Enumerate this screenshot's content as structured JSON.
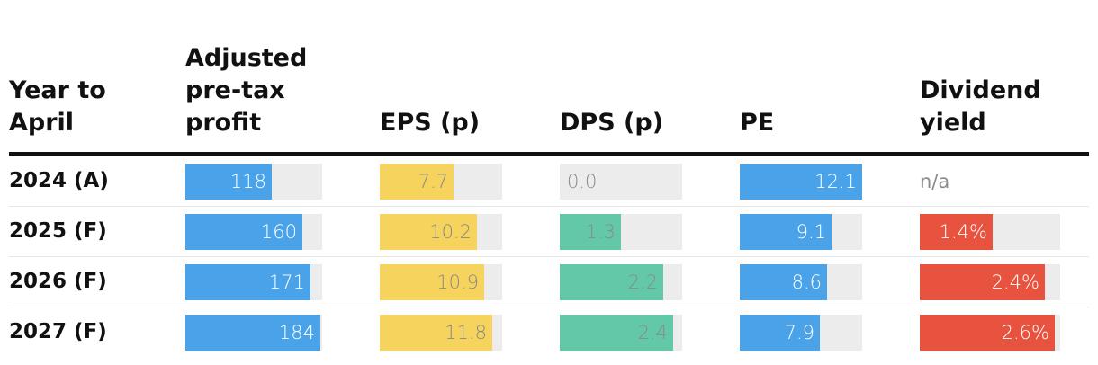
{
  "header": {
    "year": "Year to\nApril",
    "profit": "Adjusted\npre-tax\nprofit",
    "eps": "EPS (p)",
    "dps": "DPS (p)",
    "pe": "PE",
    "yield": "Dividend\nyield"
  },
  "chart_data": {
    "type": "table",
    "columns": [
      "Year to April",
      "Adjusted pre-tax profit",
      "EPS (p)",
      "DPS (p)",
      "PE",
      "Dividend yield"
    ],
    "rows": [
      {
        "year": "2024 (A)",
        "profit": {
          "value": 118,
          "label": "118"
        },
        "eps": {
          "value": 7.7,
          "label": "7.7"
        },
        "dps": {
          "value": 0.0,
          "label": "0.0"
        },
        "pe": {
          "value": 12.1,
          "label": "12.1"
        },
        "yield": {
          "value": null,
          "label": "n/a"
        }
      },
      {
        "year": "2025 (F)",
        "profit": {
          "value": 160,
          "label": "160"
        },
        "eps": {
          "value": 10.2,
          "label": "10.2"
        },
        "dps": {
          "value": 1.3,
          "label": "1.3"
        },
        "pe": {
          "value": 9.1,
          "label": "9.1"
        },
        "yield": {
          "value": 1.4,
          "label": "1.4%"
        }
      },
      {
        "year": "2026 (F)",
        "profit": {
          "value": 171,
          "label": "171"
        },
        "eps": {
          "value": 10.9,
          "label": "10.9"
        },
        "dps": {
          "value": 2.2,
          "label": "2.2"
        },
        "pe": {
          "value": 8.6,
          "label": "8.6"
        },
        "yield": {
          "value": 2.4,
          "label": "2.4%"
        }
      },
      {
        "year": "2027 (F)",
        "profit": {
          "value": 184,
          "label": "184"
        },
        "eps": {
          "value": 11.8,
          "label": "11.8"
        },
        "dps": {
          "value": 2.4,
          "label": "2.4"
        },
        "pe": {
          "value": 7.9,
          "label": "7.9"
        },
        "yield": {
          "value": 2.6,
          "label": "2.6%"
        }
      }
    ],
    "scales": {
      "profit": {
        "max": 187,
        "color": "#4aa3e8",
        "text_color": "#ffffff"
      },
      "eps": {
        "max": 12.8,
        "color": "#f6d35d",
        "text_color": "#8a8a8a"
      },
      "dps": {
        "max": 2.6,
        "color": "#63c8a8",
        "text_color": "#8a8a8a"
      },
      "pe": {
        "max": 12.1,
        "color": "#4aa3e8",
        "text_color": "#ffffff"
      },
      "yield": {
        "max": 2.7,
        "color": "#e8533f",
        "text_color": "#ffffff"
      }
    },
    "track_color": "#ececec",
    "separator_color": "#e6e6e6"
  }
}
